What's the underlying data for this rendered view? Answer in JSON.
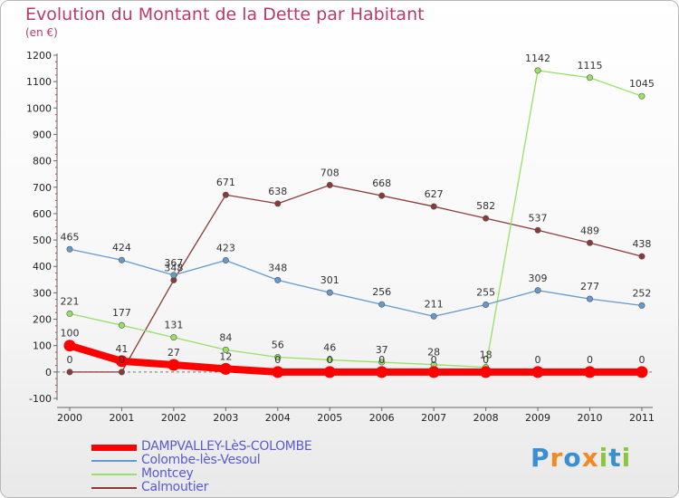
{
  "title": "Evolution du Montant de la Dette par Habitant",
  "unit": "(en €)",
  "brand": {
    "text": "Proxiti",
    "letters": [
      {
        "ch": "P",
        "color": "#3a8fd0"
      },
      {
        "ch": "r",
        "color": "#f08a24"
      },
      {
        "ch": "o",
        "color": "#3a8fd0"
      },
      {
        "ch": "x",
        "color": "#f08a24"
      },
      {
        "ch": "i",
        "color": "#8cc63f"
      },
      {
        "ch": "t",
        "color": "#3a8fd0"
      },
      {
        "ch": "i",
        "color": "#8cc63f"
      }
    ]
  },
  "chart_data": {
    "type": "line",
    "title": "Evolution du Montant de la Dette par Habitant",
    "ylabel": "(en €)",
    "xlabel": "",
    "x": [
      "2000",
      "2001",
      "2002",
      "2003",
      "2004",
      "2005",
      "2006",
      "2007",
      "2008",
      "2009",
      "2010",
      "2011"
    ],
    "ylim": [
      -100,
      1200
    ],
    "yticks": [
      -100,
      0,
      100,
      200,
      300,
      400,
      500,
      600,
      700,
      800,
      900,
      1000,
      1100,
      1200
    ],
    "grid": false,
    "legend": "bottom-left",
    "series": [
      {
        "name": "DAMPVALLEY-LèS-COLOMBE",
        "color": "#ff0000",
        "values": [
          100,
          41,
          27,
          12,
          0,
          0,
          0,
          0,
          0,
          0,
          0,
          0
        ],
        "labels": [
          "100",
          "41",
          "27",
          "12",
          "0",
          "0",
          "0",
          "0",
          "0",
          "0",
          "0",
          "0"
        ]
      },
      {
        "name": "Colombe-lès-Vesoul",
        "color": "#6699cc",
        "values": [
          465,
          424,
          367,
          423,
          348,
          301,
          256,
          211,
          255,
          309,
          277,
          252
        ],
        "labels": [
          "465",
          "424",
          "367",
          "423",
          "348",
          "301",
          "256",
          "211",
          "255",
          "309",
          "277",
          "252"
        ]
      },
      {
        "name": "Montcey",
        "color": "#99e066",
        "values": [
          221,
          177,
          131,
          84,
          56,
          46,
          37,
          28,
          18,
          1142,
          1115,
          1045
        ],
        "labels": [
          "221",
          "177",
          "131",
          "84",
          "56",
          "46",
          "37",
          "28",
          "18",
          "1142",
          "1115",
          "1045"
        ]
      },
      {
        "name": "Calmoutier",
        "color": "#8b3a3a",
        "values": [
          0,
          0,
          348,
          671,
          638,
          708,
          668,
          627,
          582,
          537,
          489,
          438
        ],
        "labels": [
          "0",
          "0",
          "348",
          "671",
          "638",
          "708",
          "668",
          "627",
          "582",
          "537",
          "489",
          "438"
        ]
      }
    ]
  }
}
